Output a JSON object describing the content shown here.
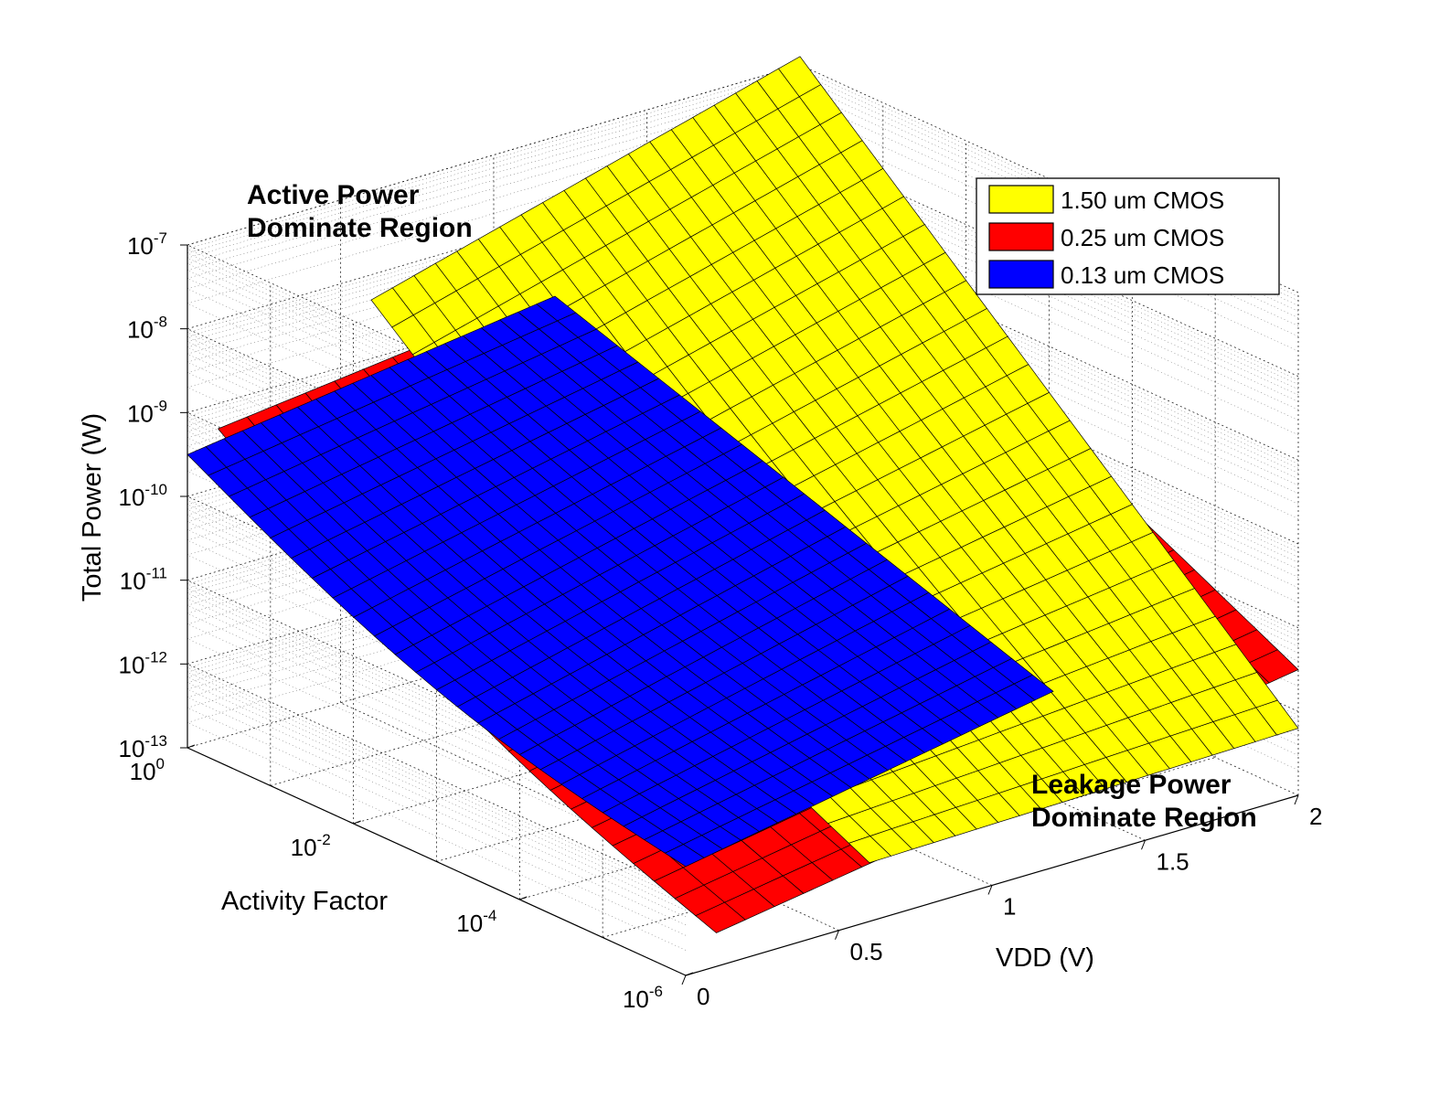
{
  "chart_data": {
    "type": "surface",
    "zlabel": "Total Power (W)",
    "xlabel": "Activity Factor",
    "ylabel": "VDD (V)",
    "z_scale": "log",
    "x_scale": "log",
    "zlim": [
      1e-13,
      1e-07
    ],
    "xlim": [
      1e-06,
      1
    ],
    "ylim": [
      0,
      2
    ],
    "grid": true,
    "z_ticks": [
      {
        "base": "10",
        "exp": "-13"
      },
      {
        "base": "10",
        "exp": "-12"
      },
      {
        "base": "10",
        "exp": "-11"
      },
      {
        "base": "10",
        "exp": "-10"
      },
      {
        "base": "10",
        "exp": "-9"
      },
      {
        "base": "10",
        "exp": "-8"
      },
      {
        "base": "10",
        "exp": "-7"
      }
    ],
    "x_ticks": [
      {
        "base": "10",
        "exp": "0"
      },
      {
        "base": "10",
        "exp": "-2"
      },
      {
        "base": "10",
        "exp": "-4"
      },
      {
        "base": "10",
        "exp": "-6"
      }
    ],
    "y_ticks": [
      "0",
      "0.5",
      "1",
      "1.5",
      "2"
    ],
    "legend_position": "top-right",
    "series": [
      {
        "name": "1.50 um CMOS",
        "color": "#ffff00",
        "vdd_range": [
          0.6,
          2.0
        ],
        "log10_power_corners": {
          "af1_vdd_min": -8.3,
          "af1_vdd_max": -6.9,
          "af1e-6_vdd_min": -12.3,
          "af1e-6_vdd_max": -12.2
        }
      },
      {
        "name": "0.25 um CMOS",
        "color": "#ff0000",
        "vdd_range": [
          0.1,
          2.0
        ],
        "log10_power_corners": {
          "af1_vdd_min": -9.3,
          "af1_vdd_max": -8.5,
          "af1e-6_vdd_min": -12.6,
          "af1e-6_vdd_max": -11.5
        }
      },
      {
        "name": "0.13 um CMOS",
        "color": "#0000ff",
        "vdd_range": [
          0.0,
          1.2
        ],
        "log10_power_corners": {
          "af1_vdd_min": -9.5,
          "af1_vdd_max": -8.9,
          "af1e-6_vdd_min": -11.7,
          "af1e-6_vdd_max": -10.9
        }
      }
    ],
    "annotations": [
      {
        "lines": [
          "Active Power",
          "Dominate Region"
        ]
      },
      {
        "lines": [
          "Leakage Power",
          "Dominate Region"
        ]
      }
    ]
  }
}
